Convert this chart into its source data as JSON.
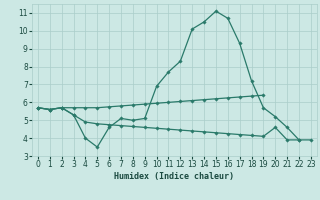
{
  "xlabel": "Humidex (Indice chaleur)",
  "x": [
    0,
    1,
    2,
    3,
    4,
    5,
    6,
    7,
    8,
    9,
    10,
    11,
    12,
    13,
    14,
    15,
    16,
    17,
    18,
    19,
    20,
    21,
    22,
    23
  ],
  "line1": [
    5.7,
    5.6,
    5.7,
    5.3,
    4.0,
    3.5,
    4.6,
    5.1,
    5.0,
    5.1,
    6.9,
    7.7,
    8.3,
    10.1,
    10.5,
    11.1,
    10.7,
    9.3,
    7.2,
    5.7,
    5.2,
    4.6,
    3.9,
    null
  ],
  "line2": [
    5.7,
    5.6,
    5.7,
    5.7,
    5.7,
    5.7,
    5.75,
    5.8,
    5.85,
    5.9,
    5.95,
    6.0,
    6.05,
    6.1,
    6.15,
    6.2,
    6.25,
    6.3,
    6.35,
    6.4,
    null,
    null,
    null,
    null
  ],
  "line3": [
    5.7,
    5.6,
    5.7,
    5.3,
    4.9,
    4.8,
    4.75,
    4.7,
    4.65,
    4.6,
    4.55,
    4.5,
    4.45,
    4.4,
    4.35,
    4.3,
    4.25,
    4.2,
    4.15,
    4.1,
    4.6,
    3.9,
    3.9,
    3.9
  ],
  "line_color": "#2a7a6a",
  "bg_color": "#cce8e4",
  "grid_color": "#aaceca",
  "ylim": [
    3,
    11.5
  ],
  "xlim": [
    -0.5,
    23.5
  ],
  "yticks": [
    3,
    4,
    5,
    6,
    7,
    8,
    9,
    10,
    11
  ],
  "xticks": [
    0,
    1,
    2,
    3,
    4,
    5,
    6,
    7,
    8,
    9,
    10,
    11,
    12,
    13,
    14,
    15,
    16,
    17,
    18,
    19,
    20,
    21,
    22,
    23
  ],
  "tick_fontsize": 5.5,
  "xlabel_fontsize": 6.0
}
